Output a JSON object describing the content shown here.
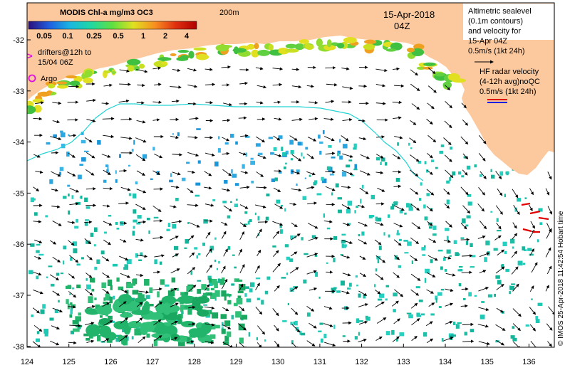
{
  "colorbar": {
    "title": "MODIS Chl-a mg/m3 OC3",
    "ticks": [
      "0.05",
      "0.1",
      "0.25",
      "0.5",
      "1",
      "2",
      "4"
    ]
  },
  "isobath_label": "200m",
  "date": "15-Apr-2018",
  "time": "04Z",
  "legend_altimetry": {
    "lines": [
      "Altimetric sealevel",
      "(0.1m contours)",
      "and velocity for",
      "15-Apr 04Z"
    ],
    "scale": "0.5m/s (1kt 24h)"
  },
  "legend_drifters": {
    "lines": [
      "drifters@12h to",
      "15/04 06Z"
    ],
    "marker": ">"
  },
  "legend_argo": "Argo",
  "legend_hf": {
    "lines": [
      "HF radar velocity",
      "(4-12h avg)noQC"
    ],
    "scale": "0.5m/s (1kt 24h)"
  },
  "credit": "© IMOS 25-Apr-2018 11:42:54 Hobart time",
  "x_ticks": [
    "124",
    "125",
    "126",
    "127",
    "128",
    "129",
    "130",
    "131",
    "132",
    "133",
    "134",
    "135",
    "136"
  ],
  "y_ticks": [
    "-32",
    "-33",
    "-34",
    "-35",
    "-36",
    "-37",
    "-38"
  ],
  "colors": {
    "land": "#fcc89e",
    "isobath": "#22d3d3",
    "colorbar": [
      "#2b0f7a",
      "#1f5fe0",
      "#19b8e0",
      "#1fd8a0",
      "#60e040",
      "#e0e020",
      "#f89020",
      "#e03010",
      "#b00000"
    ]
  }
}
